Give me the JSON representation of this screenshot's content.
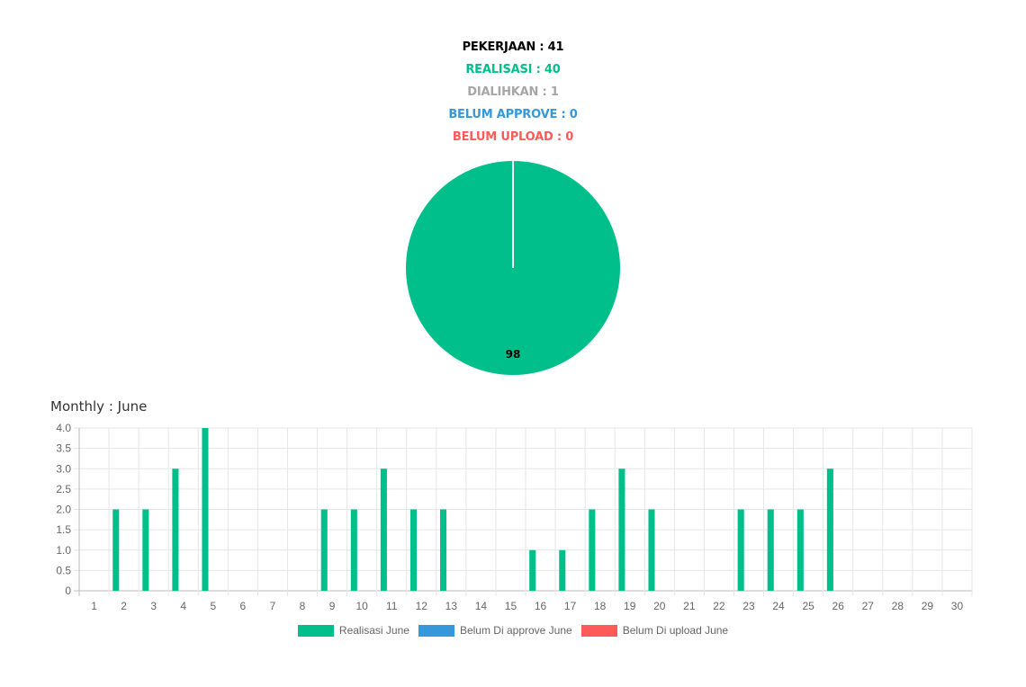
{
  "summary": {
    "pekerjaan": {
      "label": "PEKERJAAN : 41",
      "color": "#000000"
    },
    "realisasi": {
      "label": "REALISASI : 40",
      "color": "#00BF8A"
    },
    "dialihkan": {
      "label": "DIALIHKAN : 1",
      "color": "#A6A6A6"
    },
    "belum_approve": {
      "label": "BELUM APPROVE : 0",
      "color": "#3498DB"
    },
    "belum_upload": {
      "label": "BELUM UPLOAD : 0",
      "color": "#FF5A5A"
    }
  },
  "monthly_title": "Monthly : June",
  "chart_data": [
    {
      "type": "pie",
      "slices": [
        {
          "value": 98,
          "color": "#00BF8A",
          "data_label": "98"
        },
        {
          "value": 0,
          "color": "#3498DB",
          "data_label": ""
        },
        {
          "value": 0,
          "color": "#FF5A5A",
          "data_label": ""
        }
      ]
    },
    {
      "type": "bar",
      "categories": [
        "1",
        "2",
        "3",
        "4",
        "5",
        "6",
        "7",
        "8",
        "9",
        "10",
        "11",
        "12",
        "13",
        "14",
        "15",
        "16",
        "17",
        "18",
        "19",
        "20",
        "21",
        "22",
        "23",
        "24",
        "25",
        "26",
        "27",
        "28",
        "29",
        "30"
      ],
      "series": [
        {
          "name": "Realisasi June",
          "color": "#00BF8A",
          "values": [
            0,
            2,
            2,
            3,
            4,
            0,
            0,
            0,
            2,
            2,
            3,
            2,
            2,
            0,
            0,
            1,
            1,
            2,
            3,
            2,
            0,
            0,
            2,
            2,
            2,
            3,
            0,
            0,
            0,
            0
          ]
        },
        {
          "name": "Belum Di approve June",
          "color": "#3498DB",
          "values": [
            0,
            0,
            0,
            0,
            0,
            0,
            0,
            0,
            0,
            0,
            0,
            0,
            0,
            0,
            0,
            0,
            0,
            0,
            0,
            0,
            0,
            0,
            0,
            0,
            0,
            0,
            0,
            0,
            0,
            0
          ]
        },
        {
          "name": "Belum Di upload June",
          "color": "#FF5A5A",
          "values": [
            0,
            0,
            0,
            0,
            0,
            0,
            0,
            0,
            0,
            0,
            0,
            0,
            0,
            0,
            0,
            0,
            0,
            0,
            0,
            0,
            0,
            0,
            0,
            0,
            0,
            0,
            0,
            0,
            0,
            0
          ]
        }
      ],
      "yticks": [
        "0",
        "0.5",
        "1.0",
        "1.5",
        "2.0",
        "2.5",
        "3.0",
        "3.5",
        "4.0"
      ],
      "ylim": [
        0,
        4
      ],
      "grid": true,
      "legend_position": "bottom"
    }
  ]
}
